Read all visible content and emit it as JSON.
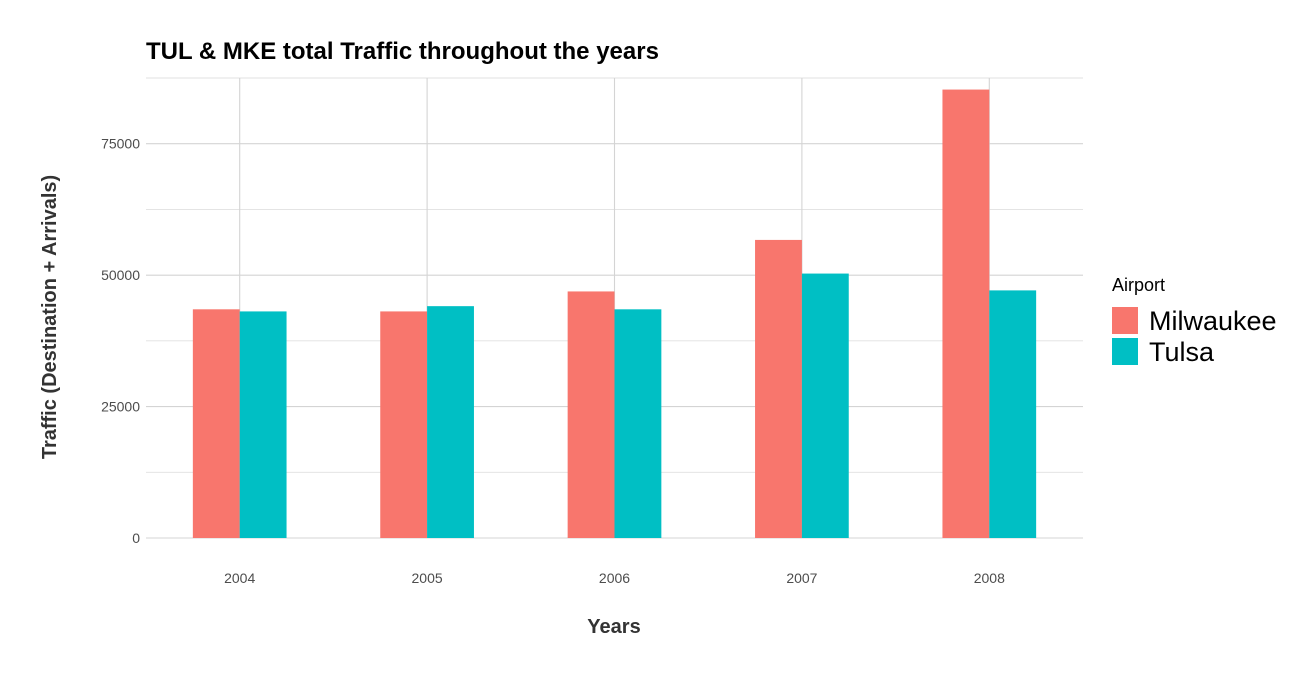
{
  "chart_data": {
    "type": "bar",
    "title": "TUL & MKE total Traffic throughout the years",
    "xlabel": "Years",
    "ylabel": "Traffic (Destination + Arrivals)",
    "categories": [
      "2004",
      "2005",
      "2006",
      "2007",
      "2008"
    ],
    "series": [
      {
        "name": "Milwaukee",
        "color": "#F8766D",
        "values": [
          43500,
          43100,
          46900,
          56700,
          85300
        ]
      },
      {
        "name": "Tulsa",
        "color": "#00BFC4",
        "values": [
          43100,
          44100,
          43500,
          50300,
          47100
        ]
      }
    ],
    "ylim": [
      0,
      87500
    ],
    "yticks": [
      0,
      25000,
      50000,
      75000
    ],
    "yticks_minor": [
      12500,
      37500,
      62500,
      87500
    ],
    "grid": true,
    "legend": {
      "title": "Airport",
      "position": "right"
    }
  }
}
